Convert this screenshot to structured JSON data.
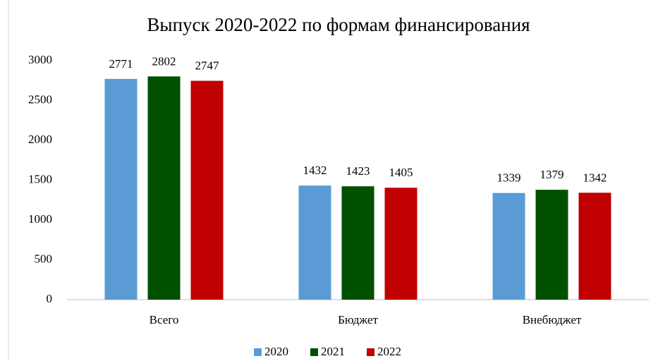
{
  "chart_data": {
    "type": "bar",
    "title": "Выпуск 2020-2022 по формам финансирования",
    "categories": [
      "Всего",
      "Бюджет",
      "Внебюджет"
    ],
    "series": [
      {
        "name": "2020",
        "color": "#5b9bd5",
        "values": [
          2771,
          1432,
          1339
        ]
      },
      {
        "name": "2021",
        "color": "#005000",
        "values": [
          2802,
          1423,
          1379
        ]
      },
      {
        "name": "2022",
        "color": "#c00000",
        "values": [
          2747,
          1405,
          1342
        ]
      }
    ],
    "ylim": [
      0,
      3000
    ],
    "yticks": [
      0,
      500,
      1000,
      1500,
      2000,
      2500,
      3000
    ],
    "grid": false,
    "legend": "bottom"
  }
}
